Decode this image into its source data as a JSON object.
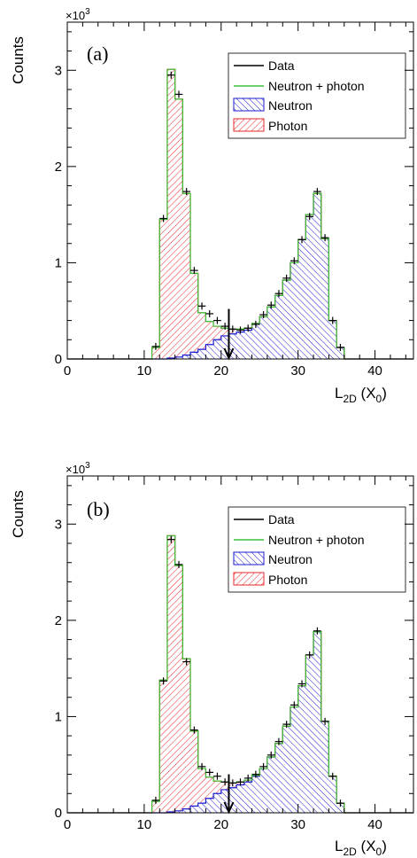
{
  "chart_data": [
    {
      "type": "histogram",
      "panel_label": "(a)",
      "xlabel_main": "L",
      "xlabel_sub": "2D",
      "xlabel_rest": " (X",
      "xlabel_sub2": "0",
      "xlabel_close": ")",
      "ylabel": "Counts",
      "yscale_label": "×10",
      "yscale_exp": "3",
      "xlim": [
        0,
        45
      ],
      "ylim": [
        0,
        3.5
      ],
      "xticks": [
        "0",
        "10",
        "20",
        "30",
        "40"
      ],
      "yticks": [
        "0",
        "1",
        "2",
        "3"
      ],
      "bin_width": 1,
      "bin_edges_start": 11,
      "photon": [
        0.12,
        1.45,
        3.0,
        2.68,
        1.68,
        0.82,
        0.38,
        0.24,
        0.14,
        0.08,
        0.05,
        0.03,
        0.02,
        0.01,
        0,
        0,
        0,
        0,
        0,
        0,
        0,
        0,
        0,
        0,
        0,
        0
      ],
      "neutron": [
        0,
        0,
        0.01,
        0.02,
        0.04,
        0.07,
        0.1,
        0.15,
        0.2,
        0.24,
        0.26,
        0.28,
        0.3,
        0.36,
        0.44,
        0.54,
        0.66,
        0.82,
        1.0,
        1.24,
        1.5,
        1.72,
        1.25,
        0.4,
        0.12,
        0
      ],
      "data_x": [
        11.5,
        12.5,
        13.5,
        14.5,
        15.5,
        16.5,
        17.5,
        18.5,
        19.5,
        20.5,
        21.5,
        22.5,
        23.5,
        24.5,
        25.5,
        26.5,
        27.5,
        28.5,
        29.5,
        30.5,
        31.5,
        32.5,
        33.5,
        34.5,
        35.5
      ],
      "data_y": [
        0.13,
        1.46,
        2.95,
        2.75,
        1.74,
        0.92,
        0.55,
        0.47,
        0.4,
        0.34,
        0.31,
        0.3,
        0.32,
        0.36,
        0.46,
        0.56,
        0.68,
        0.84,
        1.02,
        1.24,
        1.48,
        1.74,
        1.26,
        0.4,
        0.12
      ],
      "arrow_x": 21,
      "arrow_y_top": 0.52,
      "legend": [
        "Data",
        "Neutron + photon",
        "Neutron",
        "Photon"
      ],
      "legend_position": "top-right",
      "colors": {
        "photon": "#e8262a",
        "neutron": "#1b1bd0",
        "sum": "#3ac43a",
        "data": "#000000"
      }
    },
    {
      "type": "histogram",
      "panel_label": "(b)",
      "xlabel_main": "L",
      "xlabel_sub": "2D",
      "xlabel_rest": " (X",
      "xlabel_sub2": "0",
      "xlabel_close": ")",
      "ylabel": "Counts",
      "yscale_label": "×10",
      "yscale_exp": "3",
      "xlim": [
        0,
        45
      ],
      "ylim": [
        0,
        3.5
      ],
      "xticks": [
        "0",
        "10",
        "20",
        "30",
        "40"
      ],
      "yticks": [
        "0",
        "1",
        "2",
        "3"
      ],
      "bin_width": 1,
      "bin_edges_start": 11,
      "photon": [
        0.12,
        1.38,
        2.87,
        2.55,
        1.56,
        0.78,
        0.36,
        0.22,
        0.13,
        0.08,
        0.05,
        0.03,
        0.02,
        0.01,
        0,
        0,
        0,
        0,
        0,
        0,
        0,
        0,
        0,
        0,
        0,
        0
      ],
      "neutron": [
        0,
        0,
        0.01,
        0.02,
        0.04,
        0.07,
        0.1,
        0.15,
        0.2,
        0.24,
        0.26,
        0.29,
        0.32,
        0.38,
        0.46,
        0.58,
        0.72,
        0.9,
        1.1,
        1.32,
        1.64,
        1.88,
        0.95,
        0.38,
        0.1,
        0
      ],
      "data_x": [
        11.5,
        12.5,
        13.5,
        14.5,
        15.5,
        16.5,
        17.5,
        18.5,
        19.5,
        20.5,
        21.5,
        22.5,
        23.5,
        24.5,
        25.5,
        26.5,
        27.5,
        28.5,
        29.5,
        30.5,
        31.5,
        32.5,
        33.5,
        34.5,
        35.5
      ],
      "data_y": [
        0.13,
        1.37,
        2.84,
        2.58,
        1.57,
        0.86,
        0.48,
        0.42,
        0.38,
        0.32,
        0.31,
        0.32,
        0.36,
        0.4,
        0.48,
        0.6,
        0.74,
        0.92,
        1.12,
        1.34,
        1.64,
        1.89,
        0.95,
        0.38,
        0.1
      ],
      "arrow_x": 21,
      "arrow_y_top": 0.4,
      "legend": [
        "Data",
        "Neutron + photon",
        "Neutron",
        "Photon"
      ],
      "legend_position": "top-right",
      "colors": {
        "photon": "#e8262a",
        "neutron": "#1b1bd0",
        "sum": "#3ac43a",
        "data": "#000000"
      }
    }
  ]
}
